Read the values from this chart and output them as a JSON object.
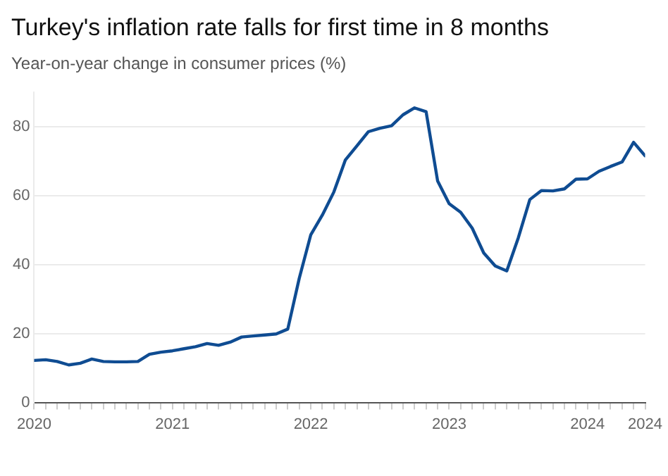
{
  "chart_data": {
    "type": "line",
    "title": "Turkey's inflation rate falls for first time in 8 months",
    "subtitle": "Year-on-year change in consumer prices (%)",
    "x": [
      "2020-01",
      "2020-02",
      "2020-03",
      "2020-04",
      "2020-05",
      "2020-06",
      "2020-07",
      "2020-08",
      "2020-09",
      "2020-10",
      "2020-11",
      "2020-12",
      "2021-01",
      "2021-02",
      "2021-03",
      "2021-04",
      "2021-05",
      "2021-06",
      "2021-07",
      "2021-08",
      "2021-09",
      "2021-10",
      "2021-11",
      "2021-12",
      "2022-01",
      "2022-02",
      "2022-03",
      "2022-04",
      "2022-05",
      "2022-06",
      "2022-07",
      "2022-08",
      "2022-09",
      "2022-10",
      "2022-11",
      "2022-12",
      "2023-01",
      "2023-02",
      "2023-03",
      "2023-04",
      "2023-05",
      "2023-06",
      "2023-07",
      "2023-08",
      "2023-09",
      "2023-10",
      "2023-11",
      "2023-12",
      "2024-01",
      "2024-02",
      "2024-03",
      "2024-04",
      "2024-05",
      "2024-06"
    ],
    "series": [
      {
        "color": "#0f4c92",
        "values": [
          12.2,
          12.4,
          11.9,
          10.9,
          11.4,
          12.6,
          11.9,
          11.8,
          11.8,
          11.9,
          14.0,
          14.6,
          15.0,
          15.6,
          16.2,
          17.1,
          16.6,
          17.5,
          19.0,
          19.3,
          19.6,
          19.9,
          21.3,
          36.1,
          48.7,
          54.4,
          61.1,
          70.4,
          74.5,
          78.6,
          79.6,
          80.3,
          83.5,
          85.5,
          84.4,
          64.3,
          57.7,
          55.2,
          50.6,
          43.4,
          39.6,
          38.2,
          47.8,
          58.9,
          61.5,
          61.4,
          62.0,
          64.8,
          64.9,
          67.1,
          68.5,
          69.8,
          75.5,
          71.6
        ]
      }
    ],
    "xlim": [
      "2020-01",
      "2024-06"
    ],
    "xticks": [
      {
        "value": "2020-01",
        "label": "2020"
      },
      {
        "value": "2020-02",
        "label": null
      },
      {
        "value": "2020-03",
        "label": null
      },
      {
        "value": "2020-04",
        "label": null
      },
      {
        "value": "2020-05",
        "label": null
      },
      {
        "value": "2020-06",
        "label": null
      },
      {
        "value": "2020-07",
        "label": null
      },
      {
        "value": "2020-08",
        "label": null
      },
      {
        "value": "2020-09",
        "label": null
      },
      {
        "value": "2020-10",
        "label": null
      },
      {
        "value": "2020-11",
        "label": null
      },
      {
        "value": "2020-12",
        "label": null
      },
      {
        "value": "2021-01",
        "label": "2021"
      },
      {
        "value": "2021-02",
        "label": null
      },
      {
        "value": "2021-03",
        "label": null
      },
      {
        "value": "2021-04",
        "label": null
      },
      {
        "value": "2021-05",
        "label": null
      },
      {
        "value": "2021-06",
        "label": null
      },
      {
        "value": "2021-07",
        "label": null
      },
      {
        "value": "2021-08",
        "label": null
      },
      {
        "value": "2021-09",
        "label": null
      },
      {
        "value": "2021-10",
        "label": null
      },
      {
        "value": "2021-11",
        "label": null
      },
      {
        "value": "2021-12",
        "label": null
      },
      {
        "value": "2022-01",
        "label": "2022"
      },
      {
        "value": "2022-02",
        "label": null
      },
      {
        "value": "2022-03",
        "label": null
      },
      {
        "value": "2022-04",
        "label": null
      },
      {
        "value": "2022-05",
        "label": null
      },
      {
        "value": "2022-06",
        "label": null
      },
      {
        "value": "2022-07",
        "label": null
      },
      {
        "value": "2022-08",
        "label": null
      },
      {
        "value": "2022-09",
        "label": null
      },
      {
        "value": "2022-10",
        "label": null
      },
      {
        "value": "2022-11",
        "label": null
      },
      {
        "value": "2022-12",
        "label": null
      },
      {
        "value": "2023-01",
        "label": "2023"
      },
      {
        "value": "2023-02",
        "label": null
      },
      {
        "value": "2023-03",
        "label": null
      },
      {
        "value": "2023-04",
        "label": null
      },
      {
        "value": "2023-05",
        "label": null
      },
      {
        "value": "2023-06",
        "label": null
      },
      {
        "value": "2023-07",
        "label": null
      },
      {
        "value": "2023-08",
        "label": null
      },
      {
        "value": "2023-09",
        "label": null
      },
      {
        "value": "2023-10",
        "label": null
      },
      {
        "value": "2023-11",
        "label": null
      },
      {
        "value": "2023-12",
        "label": null
      },
      {
        "value": "2024-01",
        "label": "2024"
      },
      {
        "value": "2024-02",
        "label": null
      },
      {
        "value": "2024-03",
        "label": null
      },
      {
        "value": "2024-04",
        "label": null
      },
      {
        "value": "2024-05",
        "label": null
      },
      {
        "value": "2024-06",
        "label": "2024"
      }
    ],
    "ylim": [
      0,
      90
    ],
    "yticks": [
      0,
      20,
      40,
      60,
      80
    ],
    "grid": "y",
    "marker": "none",
    "line_style": "solid"
  }
}
